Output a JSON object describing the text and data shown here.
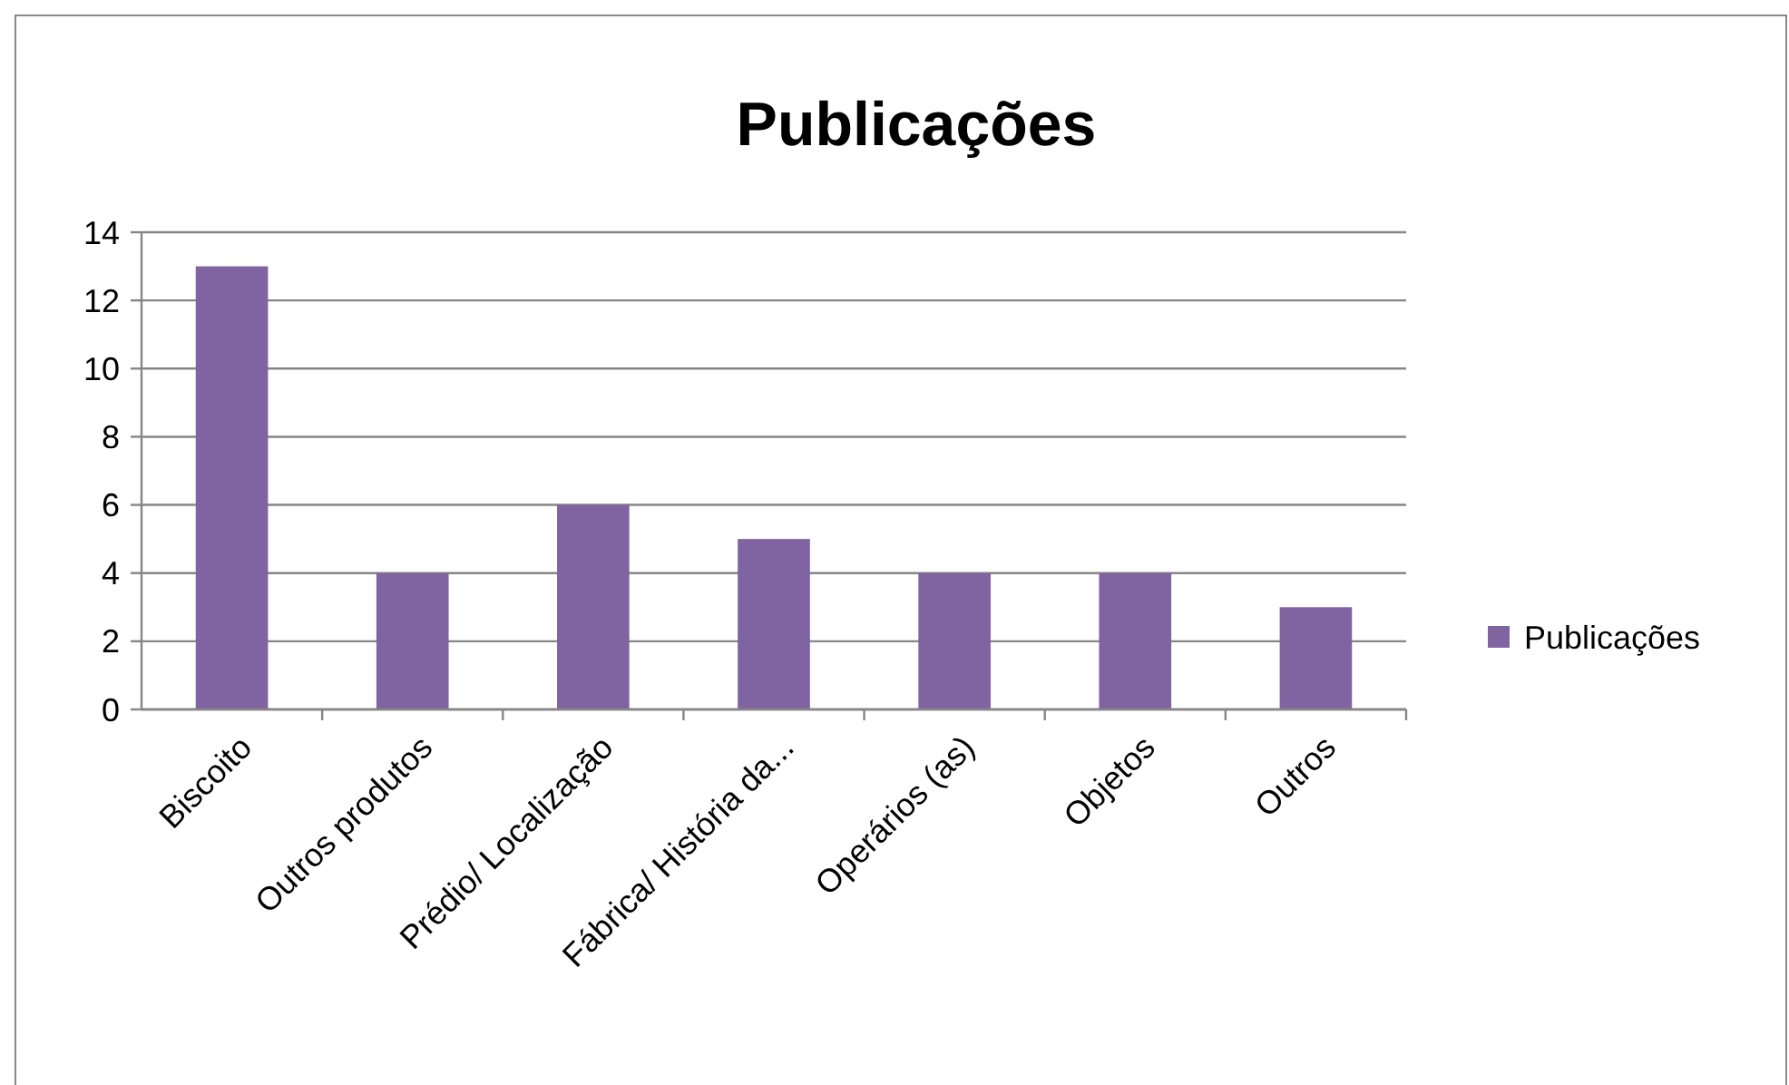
{
  "chart_data": {
    "type": "bar",
    "title": "Publicações",
    "categories": [
      "Biscoito",
      "Outros produtos",
      "Prédio/ Localização",
      "Fábrica/ História da...",
      "Operários (as)",
      "Objetos",
      "Outros"
    ],
    "series": [
      {
        "name": "Publicações",
        "color": "#8064a2",
        "values": [
          13,
          4,
          6,
          5,
          4,
          4,
          3
        ]
      }
    ],
    "ylim": [
      0,
      14
    ],
    "yticks": [
      0,
      2,
      4,
      6,
      8,
      10,
      12,
      14
    ],
    "grid": "y",
    "legend": "right"
  }
}
